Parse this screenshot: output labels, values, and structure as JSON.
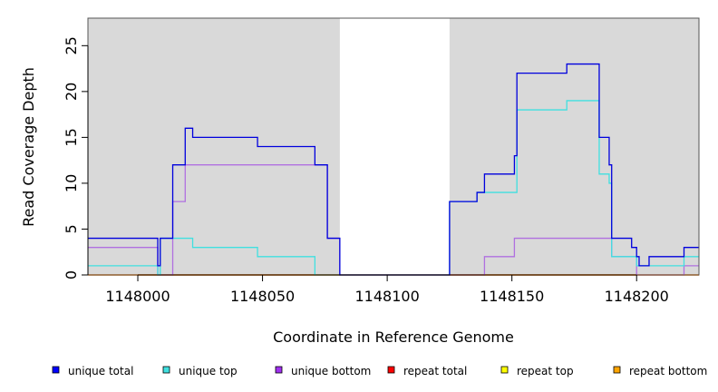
{
  "chart_data": {
    "type": "line",
    "title": "",
    "xlabel": "Coordinate in Reference Genome",
    "ylabel": "Read Coverage Depth",
    "xlim": [
      1147980,
      1148225
    ],
    "ylim": [
      0,
      28
    ],
    "x_ticks": [
      1148000,
      1148050,
      1148100,
      1148150,
      1148200
    ],
    "x_tick_labels": [
      "1148000",
      "1148050",
      "1148100",
      "1148150",
      "1148200"
    ],
    "y_ticks": [
      0,
      5,
      10,
      15,
      20,
      25
    ],
    "y_tick_labels": [
      "0",
      "5",
      "10",
      "15",
      "20",
      "25"
    ],
    "shaded_regions": [
      [
        1147980,
        1148081
      ],
      [
        1148125,
        1148225
      ]
    ],
    "shading_color": "#d9d9d9",
    "legend_position": "bottom",
    "series": [
      {
        "name": "unique total",
        "color": "#0000dd",
        "points": [
          [
            1147980,
            4
          ],
          [
            1148008,
            4
          ],
          [
            1148008,
            1
          ],
          [
            1148009,
            1
          ],
          [
            1148009,
            4
          ],
          [
            1148014,
            4
          ],
          [
            1148014,
            12
          ],
          [
            1148019,
            12
          ],
          [
            1148019,
            16
          ],
          [
            1148022,
            16
          ],
          [
            1148022,
            15
          ],
          [
            1148048,
            15
          ],
          [
            1148048,
            14
          ],
          [
            1148071,
            14
          ],
          [
            1148071,
            12
          ],
          [
            1148076,
            12
          ],
          [
            1148076,
            4
          ],
          [
            1148081,
            4
          ],
          [
            1148081,
            0
          ],
          [
            1148125,
            0
          ],
          [
            1148125,
            8
          ],
          [
            1148136,
            8
          ],
          [
            1148136,
            9
          ],
          [
            1148139,
            9
          ],
          [
            1148139,
            11
          ],
          [
            1148151,
            11
          ],
          [
            1148151,
            13
          ],
          [
            1148152,
            13
          ],
          [
            1148152,
            22
          ],
          [
            1148172,
            22
          ],
          [
            1148172,
            23
          ],
          [
            1148185,
            23
          ],
          [
            1148185,
            15
          ],
          [
            1148189,
            15
          ],
          [
            1148189,
            12
          ],
          [
            1148190,
            12
          ],
          [
            1148190,
            4
          ],
          [
            1148198,
            4
          ],
          [
            1148198,
            3
          ],
          [
            1148200,
            3
          ],
          [
            1148200,
            2
          ],
          [
            1148201,
            2
          ],
          [
            1148201,
            1
          ],
          [
            1148205,
            1
          ],
          [
            1148205,
            2
          ],
          [
            1148219,
            2
          ],
          [
            1148219,
            3
          ],
          [
            1148225,
            3
          ]
        ]
      },
      {
        "name": "unique top",
        "color": "#40e0e0",
        "points": [
          [
            1147980,
            1
          ],
          [
            1148008,
            1
          ],
          [
            1148008,
            0
          ],
          [
            1148009,
            0
          ],
          [
            1148009,
            4
          ],
          [
            1148022,
            4
          ],
          [
            1148022,
            3
          ],
          [
            1148048,
            3
          ],
          [
            1148048,
            2
          ],
          [
            1148071,
            2
          ],
          [
            1148071,
            0
          ],
          [
            1148125,
            0
          ],
          [
            1148125,
            8
          ],
          [
            1148136,
            8
          ],
          [
            1148136,
            9
          ],
          [
            1148152,
            9
          ],
          [
            1148152,
            18
          ],
          [
            1148172,
            18
          ],
          [
            1148172,
            19
          ],
          [
            1148185,
            19
          ],
          [
            1148185,
            11
          ],
          [
            1148189,
            11
          ],
          [
            1148189,
            10
          ],
          [
            1148190,
            10
          ],
          [
            1148190,
            2
          ],
          [
            1148200,
            2
          ],
          [
            1148200,
            1
          ],
          [
            1148219,
            1
          ],
          [
            1148219,
            2
          ],
          [
            1148225,
            2
          ]
        ]
      },
      {
        "name": "unique bottom",
        "color": "#b070e0",
        "points": [
          [
            1147980,
            3
          ],
          [
            1148008,
            3
          ],
          [
            1148008,
            0
          ],
          [
            1148014,
            0
          ],
          [
            1148014,
            8
          ],
          [
            1148019,
            8
          ],
          [
            1148019,
            12
          ],
          [
            1148076,
            12
          ],
          [
            1148076,
            4
          ],
          [
            1148081,
            4
          ],
          [
            1148081,
            0
          ],
          [
            1148139,
            0
          ],
          [
            1148139,
            2
          ],
          [
            1148151,
            2
          ],
          [
            1148151,
            4
          ],
          [
            1148190,
            4
          ],
          [
            1148190,
            2
          ],
          [
            1148200,
            2
          ],
          [
            1148200,
            0
          ],
          [
            1148219,
            0
          ],
          [
            1148219,
            1
          ],
          [
            1148225,
            1
          ]
        ]
      },
      {
        "name": "repeat total",
        "color": "#ff0000",
        "points": [
          [
            1147980,
            0
          ],
          [
            1148225,
            0
          ]
        ]
      },
      {
        "name": "repeat top",
        "color": "#ffff00",
        "points": [
          [
            1147980,
            0
          ],
          [
            1148225,
            0
          ]
        ]
      },
      {
        "name": "repeat bottom",
        "color": "#ffa500",
        "points": [
          [
            1147980,
            0
          ],
          [
            1148225,
            0
          ]
        ]
      }
    ],
    "legend": [
      {
        "label": "unique total",
        "color": "#0000ff"
      },
      {
        "label": "unique top",
        "color": "#40e0e0"
      },
      {
        "label": "unique bottom",
        "color": "#a030f0"
      },
      {
        "label": "repeat total",
        "color": "#ff0000"
      },
      {
        "label": "repeat top",
        "color": "#ffff00"
      },
      {
        "label": "repeat bottom",
        "color": "#ffa500"
      }
    ]
  }
}
